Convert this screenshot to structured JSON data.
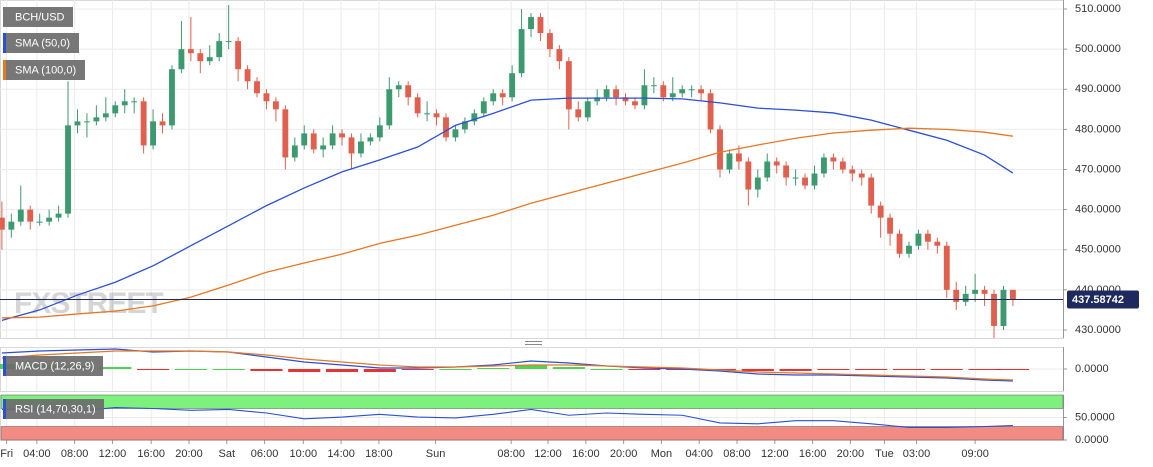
{
  "chart_data": [
    {
      "type": "candlestick",
      "title": "BCH/USD",
      "watermark": "FXSTREET",
      "up_color": "#3d9970",
      "down_color": "#e0604f",
      "x": [
        0,
        1,
        2,
        3,
        4,
        5,
        6,
        7,
        8,
        9,
        10,
        11,
        12,
        13,
        14,
        15,
        16,
        17,
        18,
        19,
        20,
        21,
        22,
        23,
        24,
        25,
        26,
        27,
        28,
        29,
        30,
        31,
        32,
        33,
        34,
        35,
        36,
        37,
        38,
        39,
        40,
        41,
        42,
        43,
        44,
        45,
        46,
        47,
        48,
        49,
        50,
        51,
        52,
        53,
        54,
        55,
        56,
        57,
        58,
        59,
        60,
        61,
        62,
        63,
        64,
        65,
        66,
        67,
        68,
        69,
        70,
        71,
        72,
        73,
        74,
        75,
        76,
        77,
        78,
        79,
        80,
        81,
        82,
        83,
        84,
        85,
        86,
        87,
        88,
        89,
        90,
        91,
        92,
        93,
        94,
        95,
        96,
        97,
        98,
        99,
        100,
        101,
        102,
        103,
        104,
        105,
        106,
        107
      ],
      "open": [
        458,
        455,
        457,
        460,
        457,
        457,
        458,
        459,
        481,
        482,
        482,
        483,
        484,
        486,
        487,
        487,
        476,
        482,
        481,
        495,
        500,
        499,
        497,
        498,
        502,
        502,
        495,
        492,
        489,
        487,
        485,
        473,
        476,
        479,
        475,
        476,
        479,
        478,
        474,
        477,
        478,
        481,
        490,
        491,
        488,
        484,
        484,
        483,
        478,
        480,
        482,
        484,
        487,
        489,
        488,
        494,
        505,
        508,
        504,
        500,
        497,
        485,
        483,
        487,
        488,
        490,
        488,
        487,
        486,
        491,
        491,
        488,
        489,
        490,
        490,
        489,
        480,
        470,
        474,
        472,
        465,
        468,
        472,
        471,
        468,
        468,
        466,
        469,
        473,
        472,
        470,
        469,
        468,
        461,
        458,
        454,
        449,
        451,
        454,
        452,
        451,
        440,
        437,
        439,
        440,
        439,
        431,
        440
      ],
      "high": [
        462,
        459,
        466,
        461,
        459,
        460,
        461,
        492,
        485,
        484,
        486,
        488,
        487,
        490,
        488,
        488,
        485,
        484,
        496,
        507,
        508,
        500,
        501,
        504,
        511,
        503,
        496,
        493,
        490,
        488,
        486,
        478,
        481,
        480,
        478,
        481,
        480,
        479,
        479,
        479,
        483,
        493,
        492,
        492,
        489,
        487,
        485,
        484,
        481,
        483,
        485,
        488,
        490,
        490,
        496,
        510,
        509,
        509,
        505,
        501,
        498,
        487,
        488,
        490,
        491,
        491,
        489,
        488,
        495,
        493,
        492,
        493,
        491,
        491,
        491,
        490,
        481,
        475,
        476,
        473,
        470,
        474,
        473,
        472,
        470,
        469,
        471,
        474,
        474,
        473,
        471,
        470,
        469,
        462,
        459,
        455,
        452,
        455,
        455,
        453,
        452,
        442,
        441,
        444,
        441,
        440,
        441,
        440
      ],
      "low": [
        450,
        453,
        456,
        455,
        456,
        456,
        457,
        458,
        479,
        478,
        481,
        482,
        483,
        484,
        484,
        474,
        475,
        479,
        480,
        494,
        497,
        494,
        496,
        497,
        500,
        492,
        490,
        488,
        485,
        482,
        470,
        472,
        475,
        474,
        473,
        475,
        476,
        470,
        473,
        476,
        477,
        480,
        488,
        486,
        483,
        482,
        481,
        477,
        477,
        479,
        481,
        483,
        486,
        486,
        487,
        493,
        503,
        502,
        498,
        495,
        480,
        482,
        482,
        486,
        487,
        486,
        486,
        485,
        485,
        489,
        487,
        487,
        488,
        488,
        487,
        479,
        468,
        469,
        470,
        461,
        463,
        467,
        469,
        466,
        466,
        465,
        465,
        468,
        470,
        469,
        467,
        466,
        459,
        453,
        451,
        448,
        448,
        450,
        450,
        449,
        438,
        435,
        436,
        437,
        436,
        428,
        430,
        436
      ],
      "close": [
        455,
        457,
        460,
        457,
        457,
        458,
        459,
        481,
        482,
        482,
        483,
        484,
        486,
        487,
        487,
        476,
        482,
        481,
        495,
        500,
        499,
        497,
        498,
        502,
        502,
        495,
        492,
        489,
        487,
        485,
        473,
        476,
        479,
        475,
        476,
        479,
        478,
        474,
        477,
        478,
        481,
        490,
        491,
        488,
        484,
        484,
        483,
        478,
        480,
        482,
        484,
        487,
        489,
        488,
        494,
        505,
        508,
        504,
        500,
        497,
        485,
        483,
        487,
        488,
        490,
        488,
        487,
        486,
        491,
        491,
        488,
        489,
        490,
        490,
        489,
        480,
        470,
        474,
        472,
        465,
        468,
        472,
        471,
        468,
        468,
        466,
        469,
        473,
        472,
        470,
        469,
        468,
        461,
        458,
        454,
        449,
        451,
        454,
        452,
        451,
        440,
        437,
        439,
        440,
        439,
        431,
        440,
        437.59
      ],
      "series": [
        {
          "name": "SMA (50,0)",
          "color": "#2b4fd8",
          "x": [
            0,
            4,
            8,
            12,
            16,
            20,
            24,
            28,
            32,
            36,
            40,
            44,
            48,
            52,
            56,
            60,
            64,
            68,
            72,
            76,
            80,
            84,
            88,
            92,
            96,
            100,
            104,
            107
          ],
          "values": [
            432.4,
            435,
            438.7,
            441.9,
            446,
            451,
            456,
            461,
            465.4,
            469.4,
            472.4,
            475.6,
            481,
            484,
            487.3,
            487.8,
            487.8,
            487.8,
            487.6,
            486.6,
            485.3,
            484.8,
            484.1,
            482.3,
            479.8,
            477.3,
            473.6,
            469.1
          ]
        },
        {
          "name": "SMA (100,0)",
          "color": "#e87722",
          "x": [
            0,
            4,
            8,
            12,
            16,
            20,
            24,
            28,
            32,
            36,
            40,
            44,
            48,
            52,
            56,
            60,
            64,
            68,
            72,
            76,
            80,
            84,
            88,
            92,
            96,
            100,
            104,
            107
          ],
          "values": [
            433,
            433.2,
            434,
            434.7,
            436,
            438.2,
            441.2,
            444.4,
            446.7,
            448.9,
            451.6,
            453.6,
            456.1,
            458.6,
            461.6,
            464.1,
            466.6,
            469.1,
            471.6,
            474.3,
            476.1,
            477.8,
            479.1,
            479.8,
            480.3,
            480,
            479.3,
            478.3
          ]
        }
      ],
      "last_price": 437.58742,
      "last_price_color": "#1e2a5e",
      "xlim": [
        -0.2,
        112.3
      ],
      "xticks": [
        {
          "value": 0.5,
          "label": "Fri"
        },
        {
          "value": 3.7,
          "label": "04:00"
        },
        {
          "value": 7.7,
          "label": "08:00"
        },
        {
          "value": 11.7,
          "label": "12:00"
        },
        {
          "value": 15.8,
          "label": "16:00"
        },
        {
          "value": 19.8,
          "label": "20:00"
        },
        {
          "value": 23.8,
          "label": "Sat"
        },
        {
          "value": 27.8,
          "label": "06:00"
        },
        {
          "value": 31.9,
          "label": "10:00"
        },
        {
          "value": 35.9,
          "label": "14:00"
        },
        {
          "value": 39.9,
          "label": "18:00"
        },
        {
          "value": 45.9,
          "label": "Sun"
        },
        {
          "value": 53.9,
          "label": "08:00"
        },
        {
          "value": 57.8,
          "label": "12:00"
        },
        {
          "value": 61.8,
          "label": "16:00"
        },
        {
          "value": 65.8,
          "label": "20:00"
        },
        {
          "value": 69.8,
          "label": "Mon"
        },
        {
          "value": 73.8,
          "label": "04:00"
        },
        {
          "value": 77.8,
          "label": "08:00"
        },
        {
          "value": 81.8,
          "label": "12:00"
        },
        {
          "value": 85.8,
          "label": "16:00"
        },
        {
          "value": 89.8,
          "label": "20:00"
        },
        {
          "value": 93.4,
          "label": "Tue"
        },
        {
          "value": 96.8,
          "label": "03:00"
        },
        {
          "value": 103,
          "label": "09:00"
        }
      ],
      "ylim": [
        428,
        512.25
      ],
      "yticks": [
        {
          "value": 510,
          "label": "510.0000"
        },
        {
          "value": 500,
          "label": "500.0000"
        },
        {
          "value": 490,
          "label": "490.0000"
        },
        {
          "value": 480,
          "label": "480.0000"
        },
        {
          "value": 470,
          "label": "470.0000"
        },
        {
          "value": 460,
          "label": "460.0000"
        },
        {
          "value": 450,
          "label": "450.0000"
        },
        {
          "value": 440,
          "label": "440.0000"
        },
        {
          "value": 430,
          "label": "430.0000"
        }
      ],
      "grid": true
    },
    {
      "type": "macd",
      "title": "MACD (12,26,9)",
      "x": [
        0,
        4,
        8,
        12,
        16,
        20,
        24,
        28,
        32,
        36,
        40,
        44,
        48,
        52,
        56,
        60,
        64,
        68,
        72,
        76,
        80,
        84,
        88,
        92,
        96,
        100,
        104,
        107
      ],
      "series": [
        {
          "color": "#2b4fd8",
          "values": [
            4,
            4.5,
            4.75,
            5,
            4.25,
            4.5,
            4.25,
            3,
            1.75,
            1,
            0.25,
            0.25,
            0.5,
            1,
            2,
            1.5,
            0.75,
            0.25,
            0,
            -0.5,
            -1.25,
            -1.5,
            -1.5,
            -1.75,
            -2,
            -2.25,
            -2.75,
            -3
          ]
        },
        {
          "color": "#e87722",
          "values": [
            2.75,
            3.5,
            4,
            4.5,
            4.5,
            4.5,
            4.25,
            3.5,
            2.5,
            1.75,
            1,
            0.5,
            0.5,
            0.75,
            1,
            1,
            0.75,
            0.5,
            0.25,
            -0.25,
            -0.75,
            -1,
            -1.25,
            -1.5,
            -1.75,
            -2,
            -2.5,
            -2.75
          ]
        }
      ],
      "histogram": {
        "up_color": "#33cc33",
        "down_color": "#e01010",
        "values": [
          1.25,
          1,
          0.75,
          0.5,
          -0.25,
          0,
          0,
          -0.5,
          -0.75,
          -0.75,
          -0.75,
          -0.25,
          0,
          0.25,
          1,
          0.5,
          0,
          -0.25,
          -0.25,
          -0.25,
          -0.5,
          -0.5,
          -0.25,
          -0.25,
          -0.25,
          -0.25,
          -0.25,
          -0.25
        ]
      },
      "xlim": [
        -0.2,
        112.3
      ],
      "ylim": [
        -5.5,
        5.5
      ],
      "yticks": [
        {
          "value": 0,
          "label": "0.0000"
        }
      ],
      "grid": true
    },
    {
      "type": "line",
      "title": "RSI (14,70,30,1)",
      "x": [
        0,
        4,
        8,
        12,
        16,
        20,
        24,
        28,
        32,
        36,
        40,
        44,
        48,
        52,
        56,
        60,
        64,
        68,
        72,
        76,
        80,
        84,
        88,
        92,
        96,
        100,
        104,
        107
      ],
      "series": [
        {
          "color": "#2b4fd8",
          "values": [
            68,
            66,
            64,
            72,
            70,
            66,
            68,
            60,
            47,
            51,
            57,
            51,
            49,
            57,
            68,
            55,
            60,
            57,
            55,
            38,
            36,
            43,
            43,
            36,
            28,
            28,
            30,
            32
          ]
        }
      ],
      "bands": [
        {
          "range": [
            70,
            100
          ],
          "color": "#7ef07e"
        },
        {
          "range": [
            0,
            30
          ],
          "color": "#f28b82"
        }
      ],
      "xlim": [
        -0.2,
        112.3
      ],
      "ylim": [
        0,
        100
      ],
      "yticks": [
        {
          "value": 50,
          "label": "50.0000"
        },
        {
          "value": 0,
          "label": "0.0000"
        }
      ],
      "grid": true
    }
  ]
}
